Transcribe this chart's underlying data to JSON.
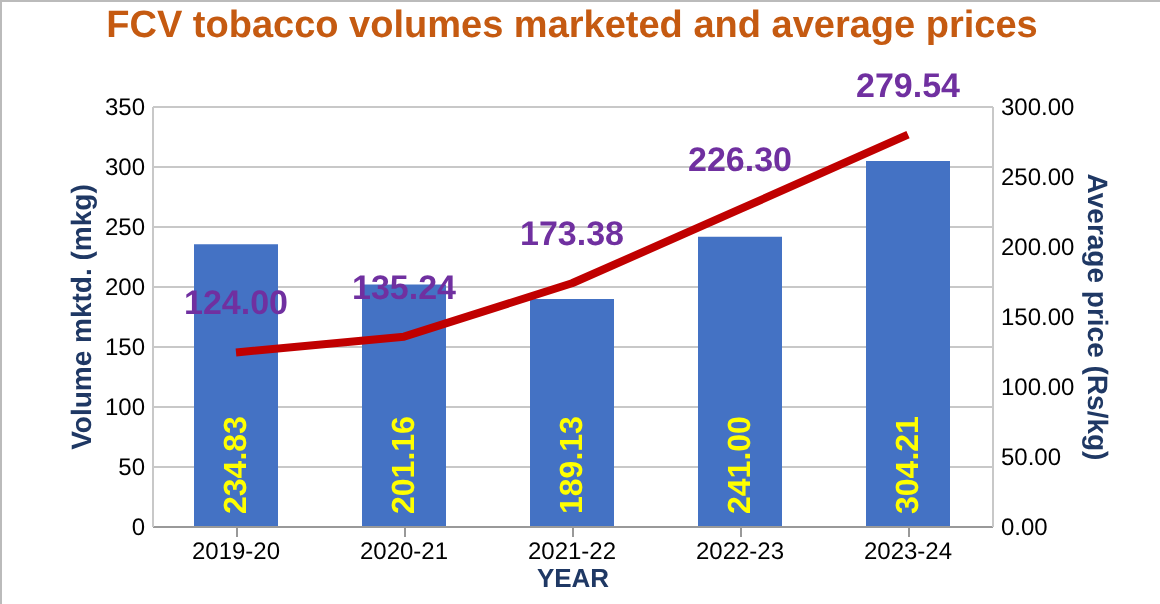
{
  "chart_data": {
    "type": "bar",
    "title": "FCV tobacco volumes marketed and average prices",
    "xlabel": "YEAR",
    "ylabel": "Volume mktd. (mkg)",
    "y2label": "Average price (Rs/kg)",
    "categories": [
      "2019-20",
      "2020-21",
      "2021-22",
      "2022-23",
      "2023-24"
    ],
    "series": [
      {
        "color": "#4472c4",
        "values": [
          234.83,
          201.16,
          189.13,
          241.0,
          304.21
        ],
        "value_labels": [
          "234.83",
          "201.16",
          "189.13",
          "241.00",
          "304.21"
        ]
      },
      {
        "type": "line",
        "axis": "y2",
        "color": "#c00000",
        "values": [
          124.0,
          135.24,
          173.38,
          226.3,
          279.54
        ],
        "value_labels": [
          "124.00",
          "135.24",
          "173.38",
          "226.30",
          "279.54"
        ]
      }
    ],
    "ylim": [
      0,
      350
    ],
    "yticks": [
      0,
      50,
      100,
      150,
      200,
      250,
      300,
      350
    ],
    "y2lim": [
      0,
      300
    ],
    "y2ticks": [
      {
        "value": 0,
        "label": "0.00"
      },
      {
        "value": 50,
        "label": "50.00"
      },
      {
        "value": 100,
        "label": "100.00"
      },
      {
        "value": 150,
        "label": "150.00"
      },
      {
        "value": 200,
        "label": "200.00"
      },
      {
        "value": 250,
        "label": "250.00"
      },
      {
        "value": 300,
        "label": "300.00"
      }
    ],
    "grid": "y"
  }
}
